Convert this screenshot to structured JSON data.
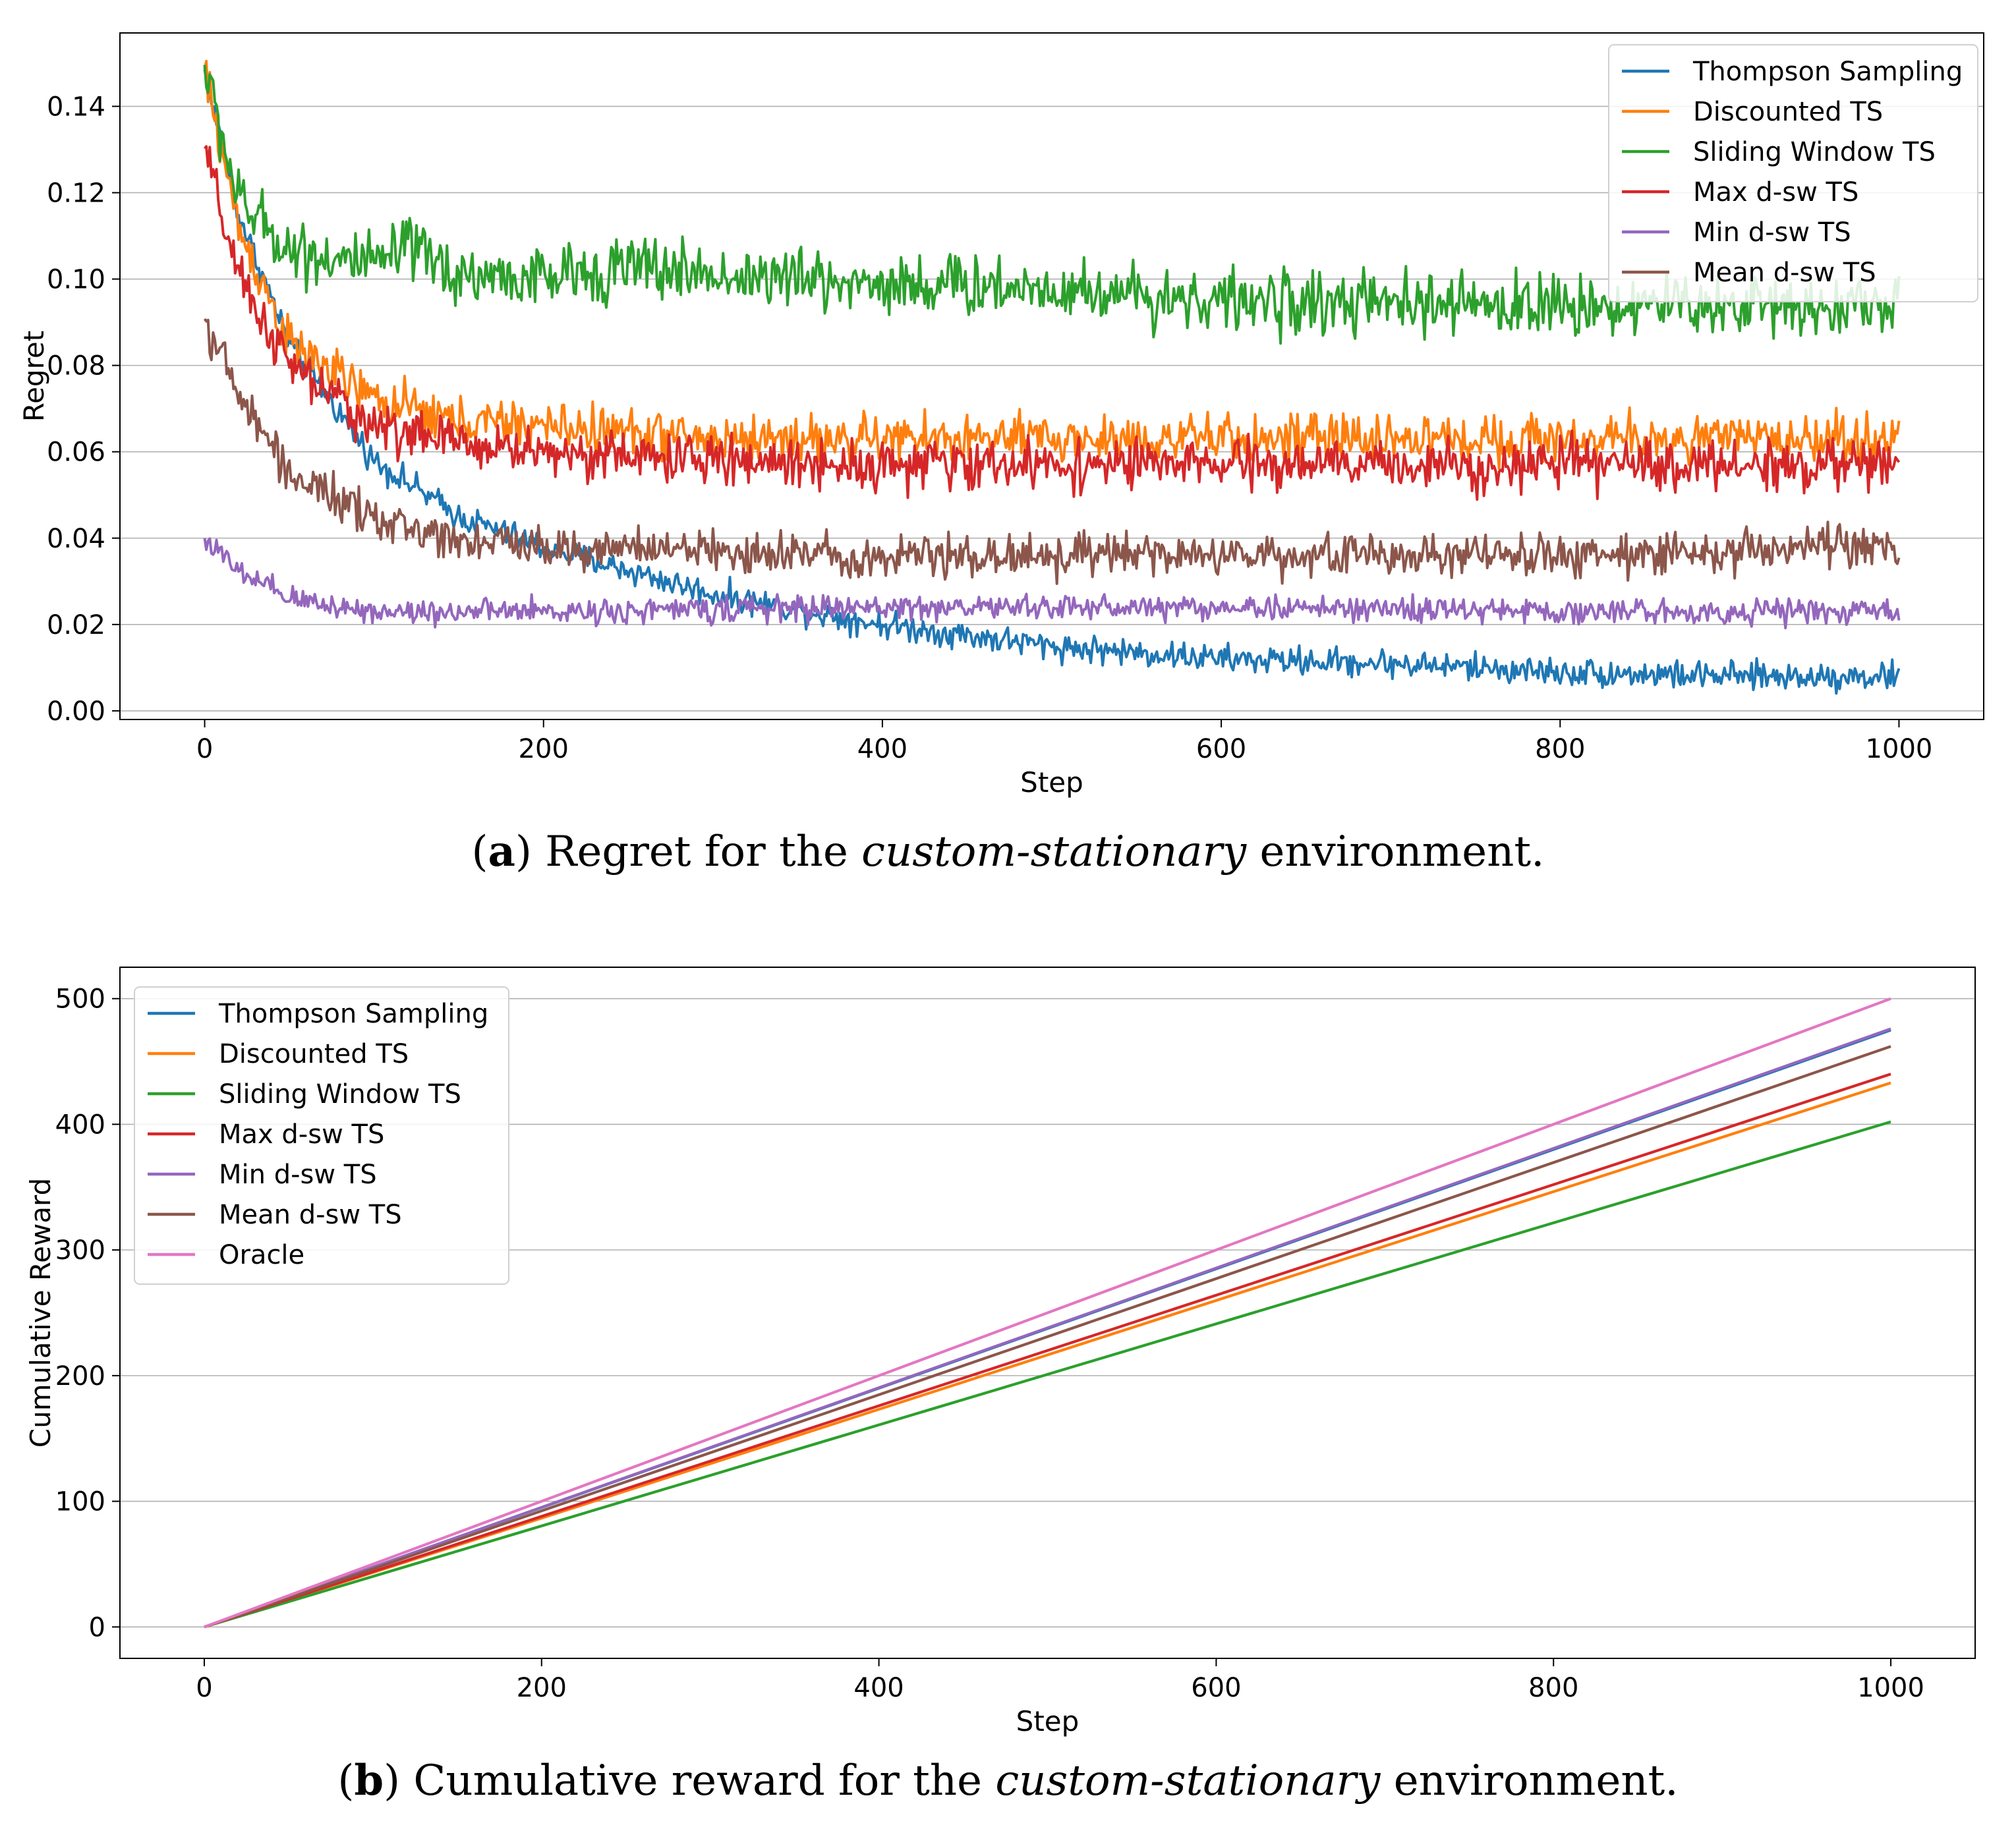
{
  "chart_data": [
    {
      "type": "line",
      "panel": "a",
      "xlabel": "Step",
      "ylabel": "Regret",
      "xlim": [
        -50,
        1050
      ],
      "ylim": [
        -0.002,
        0.157
      ],
      "xticks": [
        0,
        200,
        400,
        600,
        800,
        1000
      ],
      "xtick_labels": [
        "0",
        "200",
        "400",
        "600",
        "800",
        "1000"
      ],
      "yticks": [
        0.0,
        0.02,
        0.04,
        0.06,
        0.08,
        0.1,
        0.12,
        0.14
      ],
      "ytick_labels": [
        "0.00",
        "0.02",
        "0.04",
        "0.06",
        "0.08",
        "0.10",
        "0.12",
        "0.14"
      ],
      "grid": "horizontal",
      "legend": "top-right",
      "noise_note": "each series is noisy; curve below is the underlying trend with noise amplitude",
      "series": [
        {
          "name": "Thompson Sampling",
          "color": "#1f77b4",
          "start": 0.148,
          "floor": 0.0,
          "rate": 0.0031,
          "tail_slope": 0.0,
          "plateau": 0.0,
          "noise": 0.002,
          "trend": [
            [
              0,
              0.148
            ],
            [
              20,
              0.115
            ],
            [
              50,
              0.085
            ],
            [
              100,
              0.058
            ],
            [
              150,
              0.045
            ],
            [
              200,
              0.038
            ],
            [
              300,
              0.027
            ],
            [
              400,
              0.02
            ],
            [
              500,
              0.015
            ],
            [
              600,
              0.012
            ],
            [
              700,
              0.011
            ],
            [
              800,
              0.009
            ],
            [
              900,
              0.008
            ],
            [
              1000,
              0.008
            ]
          ]
        },
        {
          "name": "Discounted TS",
          "color": "#ff7f0e",
          "noise": 0.0035,
          "trend": [
            [
              0,
              0.148
            ],
            [
              20,
              0.112
            ],
            [
              50,
              0.085
            ],
            [
              100,
              0.072
            ],
            [
              150,
              0.067
            ],
            [
              200,
              0.066
            ],
            [
              300,
              0.063
            ],
            [
              400,
              0.063
            ],
            [
              500,
              0.063
            ],
            [
              600,
              0.063
            ],
            [
              700,
              0.063
            ],
            [
              800,
              0.063
            ],
            [
              900,
              0.063
            ],
            [
              1000,
              0.063
            ]
          ]
        },
        {
          "name": "Sliding Window TS",
          "color": "#2ca02c",
          "noise": 0.0045,
          "trend": [
            [
              0,
              0.149
            ],
            [
              20,
              0.118
            ],
            [
              50,
              0.107
            ],
            [
              100,
              0.103
            ],
            [
              120,
              0.107
            ],
            [
              150,
              0.101
            ],
            [
              200,
              0.1
            ],
            [
              250,
              0.103
            ],
            [
              300,
              0.101
            ],
            [
              400,
              0.099
            ],
            [
              500,
              0.098
            ],
            [
              600,
              0.095
            ],
            [
              700,
              0.094
            ],
            [
              800,
              0.094
            ],
            [
              900,
              0.094
            ],
            [
              1000,
              0.094
            ]
          ]
        },
        {
          "name": "Max d-sw TS",
          "color": "#d62728",
          "noise": 0.0035,
          "trend": [
            [
              0,
              0.13
            ],
            [
              20,
              0.1
            ],
            [
              50,
              0.08
            ],
            [
              100,
              0.066
            ],
            [
              150,
              0.062
            ],
            [
              200,
              0.06
            ],
            [
              300,
              0.058
            ],
            [
              400,
              0.057
            ],
            [
              500,
              0.057
            ],
            [
              600,
              0.057
            ],
            [
              700,
              0.057
            ],
            [
              800,
              0.057
            ],
            [
              900,
              0.057
            ],
            [
              1000,
              0.057
            ]
          ]
        },
        {
          "name": "Min d-sw TS",
          "color": "#9467bd",
          "noise": 0.0018,
          "trend": [
            [
              0,
              0.04
            ],
            [
              20,
              0.032
            ],
            [
              50,
              0.026
            ],
            [
              100,
              0.023
            ],
            [
              200,
              0.023
            ],
            [
              400,
              0.024
            ],
            [
              600,
              0.024
            ],
            [
              800,
              0.023
            ],
            [
              1000,
              0.023
            ]
          ]
        },
        {
          "name": "Mean d-sw TS",
          "color": "#8c564b",
          "noise": 0.003,
          "trend": [
            [
              0,
              0.091
            ],
            [
              20,
              0.073
            ],
            [
              50,
              0.055
            ],
            [
              100,
              0.044
            ],
            [
              150,
              0.04
            ],
            [
              200,
              0.038
            ],
            [
              300,
              0.037
            ],
            [
              400,
              0.036
            ],
            [
              500,
              0.036
            ],
            [
              600,
              0.036
            ],
            [
              700,
              0.036
            ],
            [
              800,
              0.036
            ],
            [
              900,
              0.037
            ],
            [
              1000,
              0.038
            ]
          ]
        }
      ]
    },
    {
      "type": "line",
      "panel": "b",
      "xlabel": "Step",
      "ylabel": "Cumulative Reward",
      "xlim": [
        -50,
        1050
      ],
      "ylim": [
        -25,
        525
      ],
      "xticks": [
        0,
        200,
        400,
        600,
        800,
        1000
      ],
      "xtick_labels": [
        "0",
        "200",
        "400",
        "600",
        "800",
        "1000"
      ],
      "yticks": [
        0,
        100,
        200,
        300,
        400,
        500
      ],
      "ytick_labels": [
        "0",
        "100",
        "200",
        "300",
        "400",
        "500"
      ],
      "grid": "horizontal",
      "legend": "top-left",
      "series": [
        {
          "name": "Thompson Sampling",
          "color": "#1f77b4",
          "x": [
            0,
            1000
          ],
          "values": [
            0,
            475
          ]
        },
        {
          "name": "Discounted TS",
          "color": "#ff7f0e",
          "x": [
            0,
            1000
          ],
          "values": [
            0,
            433
          ]
        },
        {
          "name": "Sliding Window TS",
          "color": "#2ca02c",
          "x": [
            0,
            1000
          ],
          "values": [
            0,
            402
          ]
        },
        {
          "name": "Max d-sw TS",
          "color": "#d62728",
          "x": [
            0,
            1000
          ],
          "values": [
            0,
            440
          ]
        },
        {
          "name": "Min d-sw TS",
          "color": "#9467bd",
          "x": [
            0,
            1000
          ],
          "values": [
            0,
            476
          ]
        },
        {
          "name": "Mean d-sw TS",
          "color": "#8c564b",
          "x": [
            0,
            1000
          ],
          "values": [
            0,
            462
          ]
        },
        {
          "name": "Oracle",
          "color": "#e377c2",
          "x": [
            0,
            1000
          ],
          "values": [
            0,
            500
          ]
        }
      ]
    }
  ],
  "captions": {
    "a": {
      "label": "a",
      "pre": "Regret for the ",
      "italic": "custom-stationary",
      "post": " environment."
    },
    "b": {
      "label": "b",
      "pre": "Cumulative reward for the ",
      "italic": "custom-stationary",
      "post": " environment."
    }
  }
}
